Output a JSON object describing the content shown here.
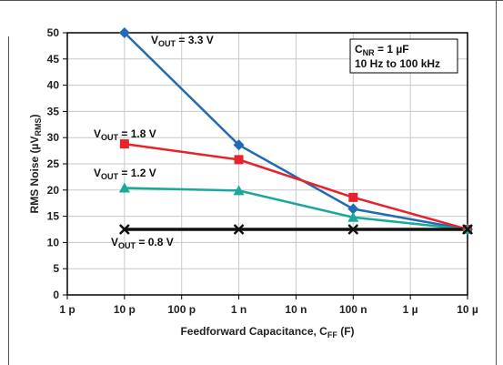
{
  "chart_data": {
    "type": "line",
    "x_scale": "log",
    "x_ticks": [
      "1 p",
      "10 p",
      "100 p",
      "1 n",
      "10 n",
      "100 n",
      "1 µ",
      "10 µ"
    ],
    "y_ticks": [
      "0",
      "5",
      "10",
      "15",
      "20",
      "25",
      "30",
      "35",
      "40",
      "45",
      "50"
    ],
    "xlabel": {
      "main": "Feedforward Capacitance, C",
      "sub": "FF",
      "unit": " (F)"
    },
    "ylabel": {
      "main": "RMS Noise (µV",
      "sub": "RMS",
      "unit": ")"
    },
    "xlim": [
      "1 p",
      "10 µ"
    ],
    "ylim": [
      0,
      50
    ],
    "grid": true,
    "legend": {
      "line1": {
        "main": "C",
        "sub": "NR",
        "rest": " = 1 µF"
      },
      "line2": "10 Hz to 100 kHz"
    },
    "series": [
      {
        "label": {
          "main": "V",
          "sub": "OUT",
          "rest": " = 3.3 V"
        },
        "color": "#1f6bb5",
        "marker": "diamond",
        "points": [
          [
            "10 p",
            50
          ],
          [
            "1 n",
            28.6
          ],
          [
            "100 n",
            16.4
          ],
          [
            "10 µ",
            12.5
          ]
        ]
      },
      {
        "label": {
          "main": "V",
          "sub": "OUT",
          "rest": " = 1.8 V"
        },
        "color": "#e8212a",
        "marker": "square",
        "points": [
          [
            "10 p",
            28.8
          ],
          [
            "1 n",
            25.8
          ],
          [
            "100 n",
            18.6
          ],
          [
            "10 µ",
            12.5
          ]
        ]
      },
      {
        "label": {
          "main": "V",
          "sub": "OUT",
          "rest": " = 1.2 V"
        },
        "color": "#1aa89a",
        "marker": "triangle",
        "points": [
          [
            "10 p",
            20.4
          ],
          [
            "1 n",
            19.9
          ],
          [
            "100 n",
            14.8
          ],
          [
            "10 µ",
            12.5
          ]
        ]
      },
      {
        "label": {
          "main": "V",
          "sub": "OUT",
          "rest": " = 0.8 V"
        },
        "color": "#111111",
        "marker": "x",
        "points": [
          [
            "10 p",
            12.5
          ],
          [
            "1 n",
            12.5
          ],
          [
            "100 n",
            12.5
          ],
          [
            "10 µ",
            12.5
          ]
        ]
      }
    ]
  }
}
